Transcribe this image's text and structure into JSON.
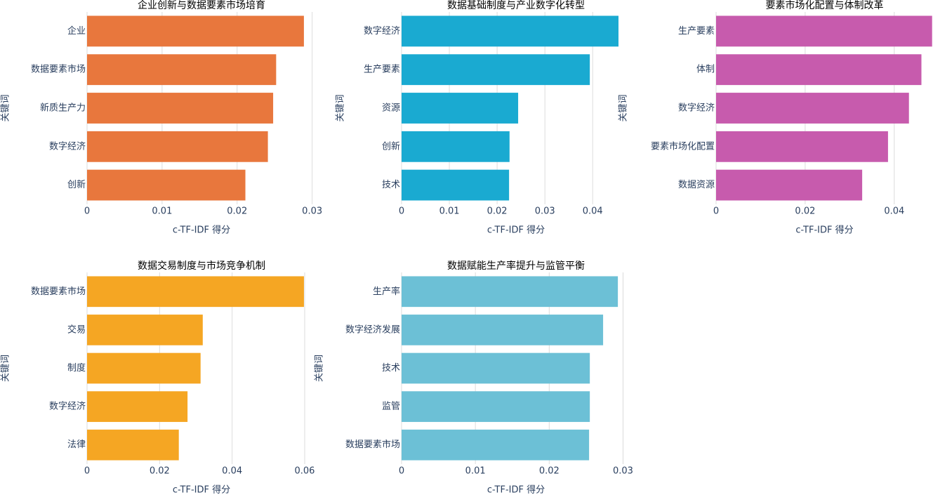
{
  "chart_data": [
    {
      "type": "bar",
      "orientation": "horizontal",
      "title": "企业创新与数据要素市场培育",
      "categories": [
        "企业",
        "数据要素市场",
        "新质生产力",
        "数字经济",
        "创新"
      ],
      "values": [
        0.0289,
        0.0252,
        0.0248,
        0.0241,
        0.0211
      ],
      "color": "#e8773d",
      "xlim": [
        0,
        0.0305
      ],
      "xticks": [
        0,
        0.01,
        0.02,
        0.03
      ],
      "x_label": "c-TF-IDF 得分",
      "y_label": "关键词",
      "grid": true
    },
    {
      "type": "bar",
      "orientation": "horizontal",
      "title": "数据基础制度与产业数字化转型",
      "categories": [
        "数字经济",
        "生产要素",
        "资源",
        "创新",
        "技术"
      ],
      "values": [
        0.0454,
        0.0394,
        0.0244,
        0.0226,
        0.0225
      ],
      "color": "#1aaad1",
      "xlim": [
        0,
        0.0479
      ],
      "xticks": [
        0,
        0.01,
        0.02,
        0.03,
        0.04
      ],
      "x_label": "c-TF-IDF 得分",
      "y_label": "关键词",
      "grid": true
    },
    {
      "type": "bar",
      "orientation": "horizontal",
      "title": "要素市场化配置与体制改革",
      "categories": [
        "生产要素",
        "体制",
        "数字经济",
        "要素市场化配置",
        "数据资源"
      ],
      "values": [
        0.0485,
        0.0461,
        0.0433,
        0.0386,
        0.0328
      ],
      "color": "#c75bad",
      "xlim": [
        0,
        0.0487
      ],
      "xticks": [
        0,
        0.02,
        0.04
      ],
      "x_label": "c-TF-IDF 得分",
      "y_label": "关键词",
      "grid": true
    },
    {
      "type": "bar",
      "orientation": "horizontal",
      "title": "数据交易制度与市场竞争机制",
      "categories": [
        "数据要素市场",
        "交易",
        "制度",
        "数字经济",
        "法律"
      ],
      "values": [
        0.0598,
        0.0319,
        0.0313,
        0.0277,
        0.0253
      ],
      "color": "#f5a623",
      "xlim": [
        0,
        0.0631
      ],
      "xticks": [
        0,
        0.02,
        0.04,
        0.06
      ],
      "x_label": "c-TF-IDF 得分",
      "y_label": "关键词",
      "grid": true
    },
    {
      "type": "bar",
      "orientation": "horizontal",
      "title": "数据赋能生产率提升与监管平衡",
      "categories": [
        "生产率",
        "数字经济发展",
        "技术",
        "监管",
        "数据要素市场"
      ],
      "values": [
        0.0293,
        0.0273,
        0.0255,
        0.0255,
        0.0254
      ],
      "color": "#6cc0d6",
      "xlim": [
        0,
        0.031
      ],
      "xticks": [
        0,
        0.01,
        0.02,
        0.03
      ],
      "x_label": "c-TF-IDF 得分",
      "y_label": "关键词",
      "grid": true
    }
  ]
}
